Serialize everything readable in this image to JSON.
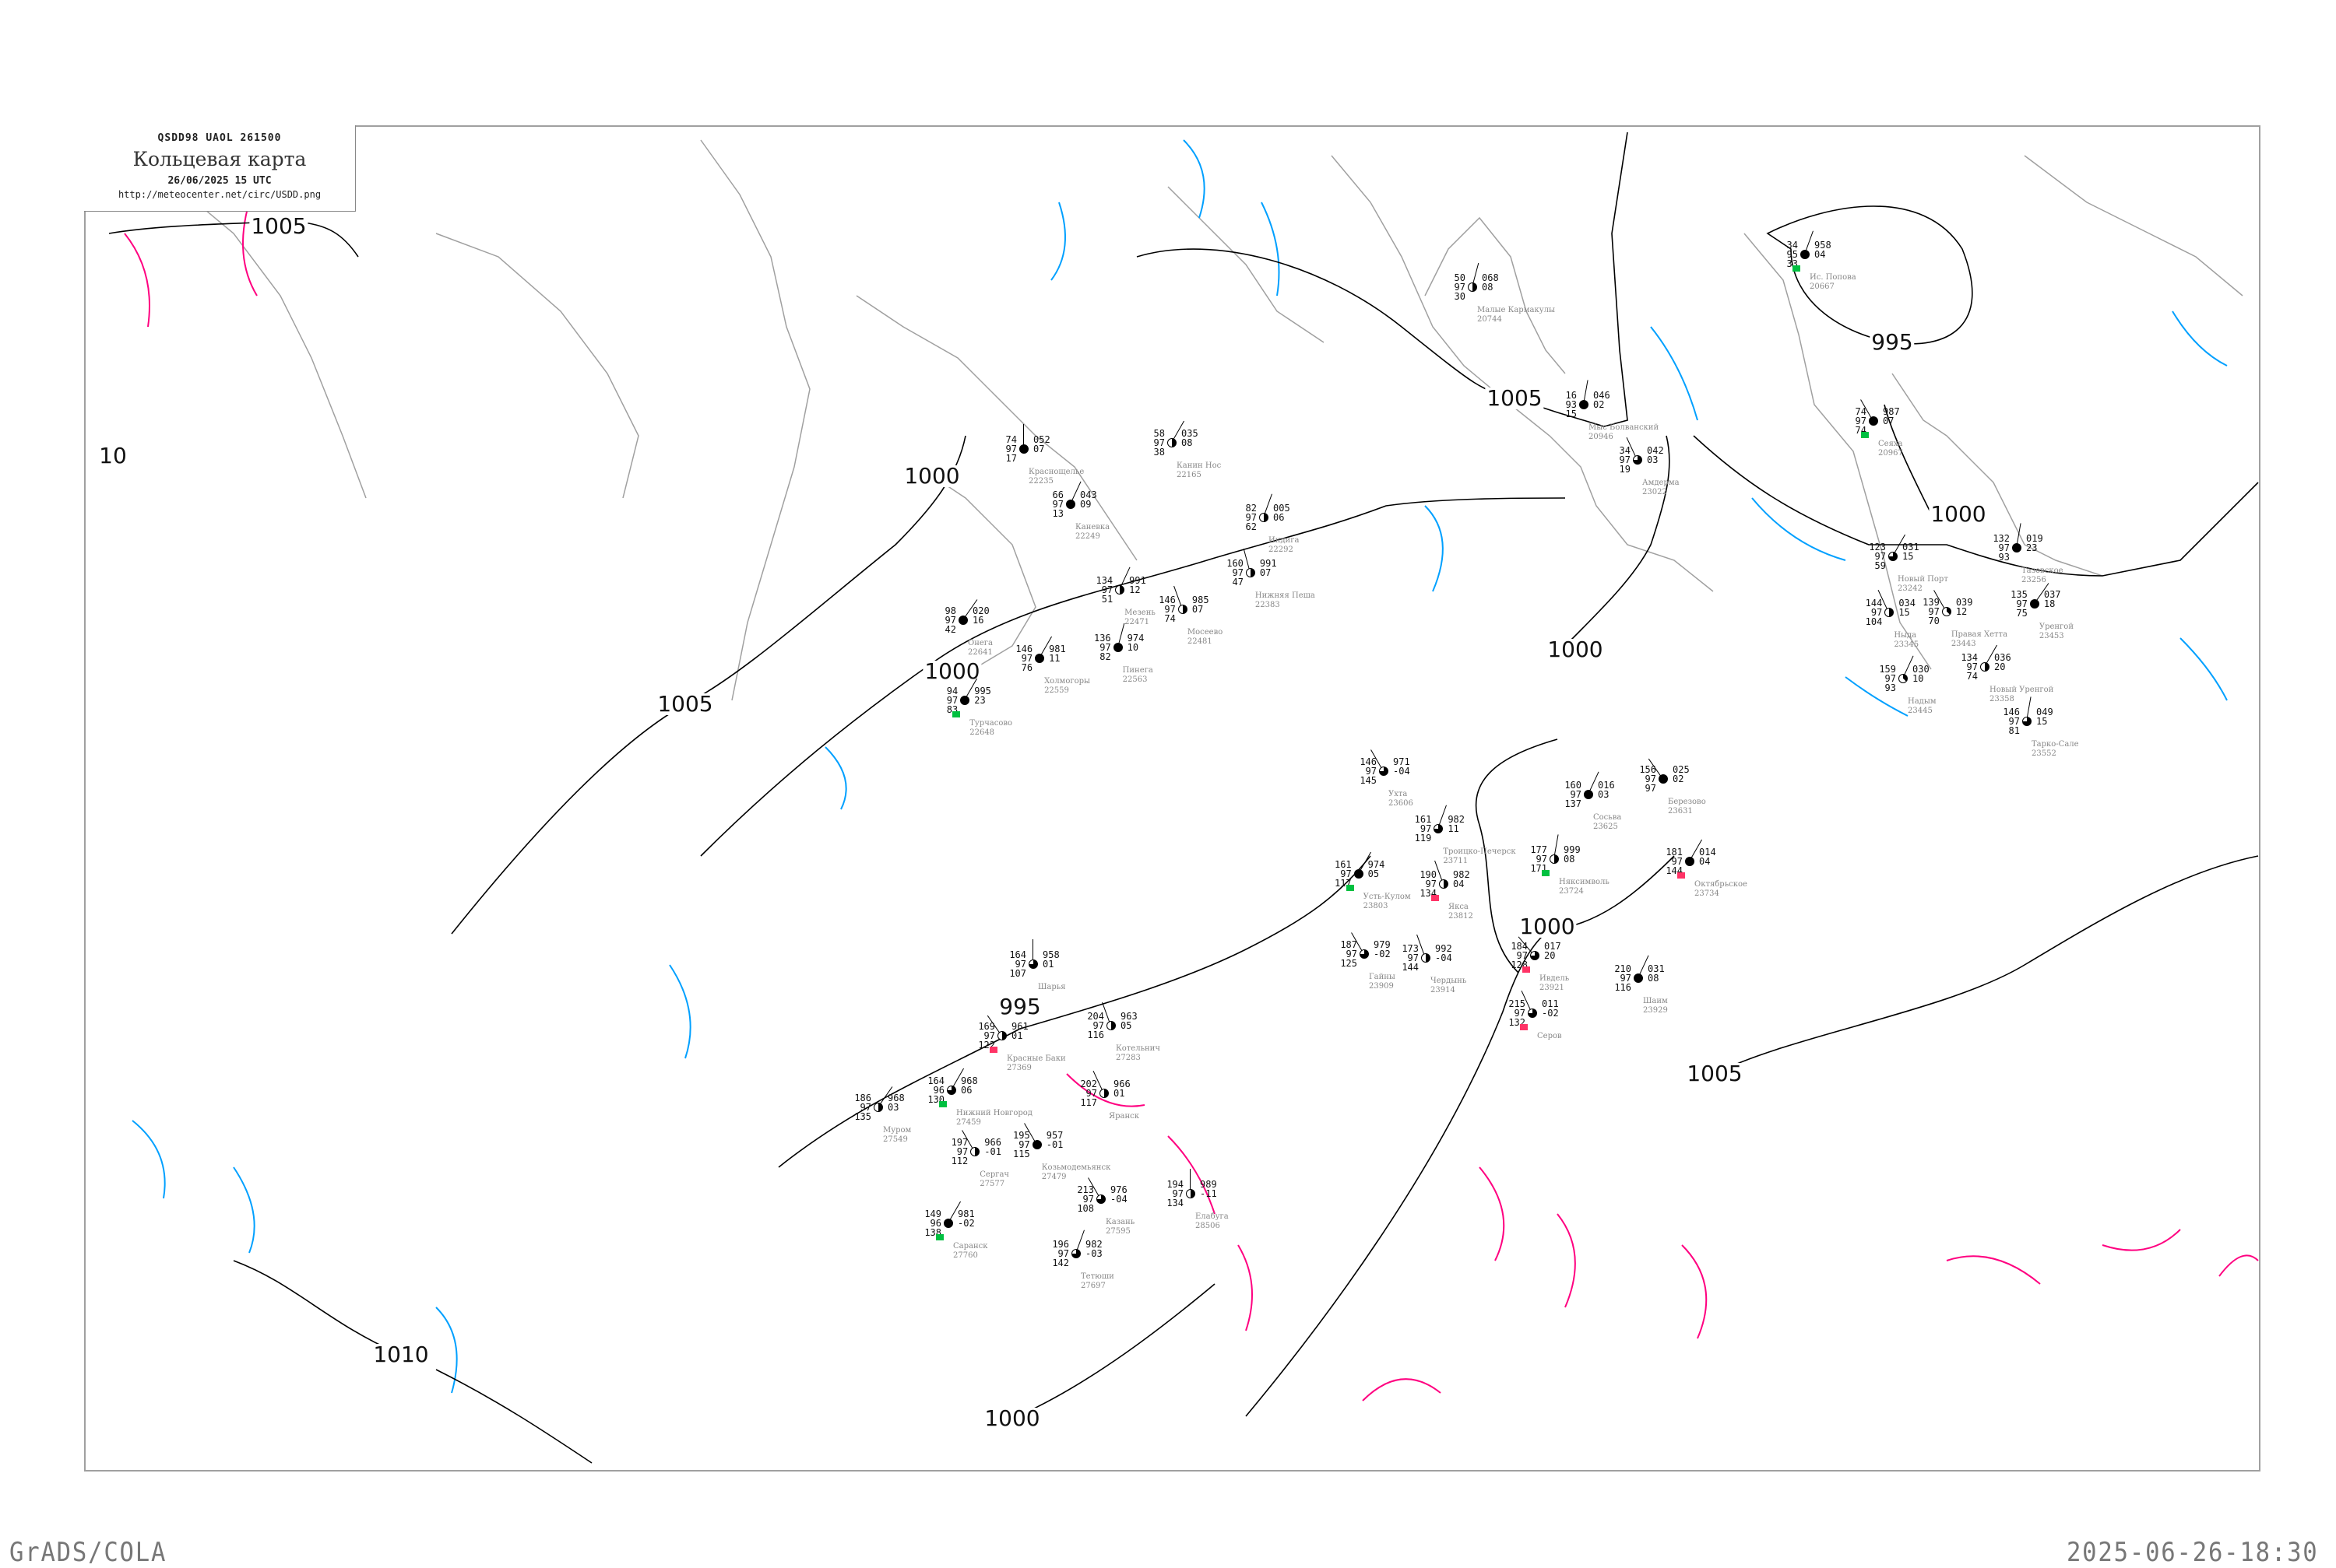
{
  "header": {
    "code": "QSDD98  UAOL  261500",
    "title": "Кольцевая карта",
    "date": "26/06/2025 15 UTC",
    "url": "http://meteocenter.net/circ/USDD.png"
  },
  "footer": {
    "left": "GrADS/COLA",
    "right": "2025-06-26-18:30"
  },
  "colors": {
    "isobar": "#000000",
    "isotherm_cold": "#00a0ff",
    "isotherm_warm": "#ff0080",
    "coastline": "#a0a0a0",
    "frame": "#a0a0a0",
    "precip_green": "#00c040",
    "precip_red": "#ff3366"
  },
  "isobar_labels": [
    "1005",
    "10",
    "1005",
    "1000",
    "1000",
    "1005",
    "995",
    "1000",
    "1000",
    "1000",
    "995",
    "1005",
    "1010",
    "1000"
  ],
  "stations": [
    {
      "name": "Ис. Попова",
      "id": "20667",
      "t": "34",
      "p": "958",
      "dew": "33",
      "vis": "95",
      "tend": "04",
      "cover": 8,
      "precip": "green"
    },
    {
      "name": "Сеяха",
      "id": "20967",
      "t": "74",
      "p": "987",
      "dew": "74",
      "vis": "97",
      "tend": "07",
      "cover": 8,
      "precip": "green"
    },
    {
      "name": "Малые Кармакулы",
      "id": "20744",
      "t": "50",
      "p": "068",
      "dew": "30",
      "vis": "97",
      "tend": "08",
      "cover": 4,
      "precip": ""
    },
    {
      "name": "Мыс Болванский",
      "id": "20946",
      "t": "16",
      "p": "046",
      "dew": "15",
      "vis": "93",
      "tend": "02",
      "cover": 8,
      "precip": ""
    },
    {
      "name": "Амдерма",
      "id": "23022",
      "t": "34",
      "p": "042",
      "dew": "19",
      "vis": "97",
      "tend": "03",
      "cover": 6,
      "precip": ""
    },
    {
      "name": "Канин Нос",
      "id": "22165",
      "t": "58",
      "p": "035",
      "dew": "38",
      "vis": "97",
      "tend": "08",
      "cover": 4,
      "precip": ""
    },
    {
      "name": "Индига",
      "id": "22292",
      "t": "82",
      "p": "005",
      "dew": "62",
      "vis": "97",
      "tend": "06",
      "cover": 4,
      "precip": ""
    },
    {
      "name": "Нижняя Пеша",
      "id": "22383",
      "t": "160",
      "p": "991",
      "dew": "47",
      "vis": "97",
      "tend": "07",
      "cover": 4,
      "precip": ""
    },
    {
      "name": "Мезень",
      "id": "22471",
      "t": "134",
      "p": "991",
      "dew": "51",
      "vis": "97",
      "tend": "12",
      "cover": 4,
      "precip": ""
    },
    {
      "name": "Мосеево",
      "id": "22481",
      "t": "146",
      "p": "985",
      "dew": "74",
      "vis": "97",
      "tend": "07",
      "cover": 4,
      "precip": ""
    },
    {
      "name": "Онега",
      "id": "22641",
      "t": "98",
      "p": "020",
      "dew": "42",
      "vis": "97",
      "tend": "16",
      "cover": 8,
      "precip": ""
    },
    {
      "name": "Холмогоры",
      "id": "22559",
      "t": "146",
      "p": "981",
      "dew": "76",
      "vis": "97",
      "tend": "11",
      "cover": 8,
      "precip": ""
    },
    {
      "name": "Пинега",
      "id": "22563",
      "t": "136",
      "p": "974",
      "dew": "82",
      "vis": "97",
      "tend": "10",
      "cover": 8,
      "precip": ""
    },
    {
      "name": "Каневка",
      "id": "22249",
      "t": "66",
      "p": "043",
      "dew": "13",
      "vis": "97",
      "tend": "09",
      "cover": 8,
      "precip": ""
    },
    {
      "name": "Краснощелье",
      "id": "22235",
      "t": "74",
      "p": "052",
      "dew": "17",
      "vis": "97",
      "tend": "07",
      "cover": 8,
      "precip": ""
    },
    {
      "name": "Турчасово",
      "id": "22648",
      "t": "94",
      "p": "995",
      "dew": "83",
      "vis": "97",
      "tend": "23",
      "cover": 8,
      "precip": "green"
    },
    {
      "name": "Ухта",
      "id": "23606",
      "t": "146",
      "p": "971",
      "dew": "145",
      "vis": "97",
      "tend": "-04",
      "cover": 6,
      "precip": ""
    },
    {
      "name": "Троицко-Печерск",
      "id": "23711",
      "t": "161",
      "p": "982",
      "dew": "119",
      "vis": "97",
      "tend": "11",
      "cover": 6,
      "precip": ""
    },
    {
      "name": "Усть-Кулом",
      "id": "23803",
      "t": "161",
      "p": "974",
      "dew": "117",
      "vis": "97",
      "tend": "05",
      "cover": 8,
      "precip": "green"
    },
    {
      "name": "Якса",
      "id": "23812",
      "t": "190",
      "p": "982",
      "dew": "134",
      "vis": "97",
      "tend": "04",
      "cover": 4,
      "precip": "red"
    },
    {
      "name": "Няксимволь",
      "id": "23724",
      "t": "177",
      "p": "999",
      "dew": "171",
      "vis": "97",
      "tend": "08",
      "cover": 4,
      "precip": "green"
    },
    {
      "name": "Сосьва",
      "id": "23625",
      "t": "160",
      "p": "016",
      "dew": "137",
      "vis": "97",
      "tend": "03",
      "cover": 8,
      "precip": ""
    },
    {
      "name": "Березово",
      "id": "23631",
      "t": "156",
      "p": "025",
      "dew": "97",
      "vis": "97",
      "tend": "02",
      "cover": 8,
      "precip": ""
    },
    {
      "name": "Октябрьское",
      "id": "23734",
      "t": "181",
      "p": "014",
      "dew": "144",
      "vis": "97",
      "tend": "04",
      "cover": 8,
      "precip": "red"
    },
    {
      "name": "Ивдель",
      "id": "23921",
      "t": "184",
      "p": "017",
      "dew": "128",
      "vis": "97",
      "tend": "20",
      "cover": 6,
      "precip": "red"
    },
    {
      "name": "Гайны",
      "id": "23909",
      "t": "187",
      "p": "979",
      "dew": "125",
      "vis": "97",
      "tend": "-02",
      "cover": 6,
      "precip": ""
    },
    {
      "name": "Чердынь",
      "id": "23914",
      "t": "173",
      "p": "992",
      "dew": "144",
      "vis": "97",
      "tend": "-04",
      "cover": 4,
      "precip": ""
    },
    {
      "name": "Шаим",
      "id": "23929",
      "t": "210",
      "p": "031",
      "dew": "116",
      "vis": "97",
      "tend": "08",
      "cover": 8,
      "precip": ""
    },
    {
      "name": "Серов",
      "id": "",
      "t": "215",
      "p": "011",
      "dew": "132",
      "vis": "97",
      "tend": "-02",
      "cover": 6,
      "precip": "red"
    },
    {
      "name": "Нижний Новгород",
      "id": "27459",
      "t": "164",
      "p": "968",
      "dew": "130",
      "vis": "96",
      "tend": "06",
      "cover": 6,
      "precip": "green"
    },
    {
      "name": "Муром",
      "id": "27549",
      "t": "186",
      "p": "968",
      "dew": "135",
      "vis": "97",
      "tend": "03",
      "cover": 4,
      "precip": ""
    },
    {
      "name": "Козьмодемьянск",
      "id": "27479",
      "t": "195",
      "p": "957",
      "dew": "115",
      "vis": "97",
      "tend": "-01",
      "cover": 8,
      "precip": ""
    },
    {
      "name": "Красные Баки",
      "id": "27369",
      "t": "169",
      "p": "961",
      "dew": "122",
      "vis": "97",
      "tend": "01",
      "cover": 4,
      "precip": "red"
    },
    {
      "name": "Шарья",
      "id": "",
      "t": "164",
      "p": "958",
      "dew": "107",
      "vis": "97",
      "tend": "01",
      "cover": 6,
      "precip": ""
    },
    {
      "name": "Котельнич",
      "id": "27283",
      "t": "204",
      "p": "963",
      "dew": "116",
      "vis": "97",
      "tend": "05",
      "cover": 4,
      "precip": ""
    },
    {
      "name": "Яранск",
      "id": "",
      "t": "202",
      "p": "966",
      "dew": "117",
      "vis": "97",
      "tend": "01",
      "cover": 4,
      "precip": ""
    },
    {
      "name": "Сергач",
      "id": "27577",
      "t": "197",
      "p": "966",
      "dew": "112",
      "vis": "97",
      "tend": "-01",
      "cover": 4,
      "precip": ""
    },
    {
      "name": "Саранск",
      "id": "27760",
      "t": "149",
      "p": "981",
      "dew": "138",
      "vis": "96",
      "tend": "-02",
      "cover": 8,
      "precip": "green"
    },
    {
      "name": "Казань",
      "id": "27595",
      "t": "213",
      "p": "976",
      "dew": "108",
      "vis": "97",
      "tend": "-04",
      "cover": 6,
      "precip": ""
    },
    {
      "name": "Тетюши",
      "id": "27697",
      "t": "196",
      "p": "982",
      "dew": "142",
      "vis": "97",
      "tend": "-03",
      "cover": 6,
      "precip": ""
    },
    {
      "name": "Елабуга",
      "id": "28506",
      "t": "194",
      "p": "989",
      "dew": "134",
      "vis": "97",
      "tend": "-11",
      "cover": 4,
      "precip": ""
    },
    {
      "name": "Тазовское",
      "id": "23256",
      "t": "132",
      "p": "019",
      "dew": "93",
      "vis": "97",
      "tend": "23",
      "cover": 8,
      "precip": ""
    },
    {
      "name": "Новый Порт",
      "id": "23242",
      "t": "123",
      "p": "031",
      "dew": "59",
      "vis": "97",
      "tend": "15",
      "cover": 6,
      "precip": ""
    },
    {
      "name": "Ныда",
      "id": "23345",
      "t": "144",
      "p": "034",
      "dew": "104",
      "vis": "97",
      "tend": "15",
      "cover": 4,
      "precip": ""
    },
    {
      "name": "Новый Уренгой",
      "id": "23358",
      "t": "134",
      "p": "036",
      "dew": "74",
      "vis": "97",
      "tend": "20",
      "cover": 4,
      "precip": ""
    },
    {
      "name": "Уренгой",
      "id": "23453",
      "t": "135",
      "p": "037",
      "dew": "75",
      "vis": "97",
      "tend": "18",
      "cover": 8,
      "precip": ""
    },
    {
      "name": "Правая Хетта",
      "id": "23443",
      "t": "139",
      "p": "039",
      "dew": "70",
      "vis": "97",
      "tend": "12",
      "cover": 3,
      "precip": ""
    },
    {
      "name": "Надым",
      "id": "23445",
      "t": "159",
      "p": "030",
      "dew": "93",
      "vis": "97",
      "tend": "10",
      "cover": 3,
      "precip": ""
    },
    {
      "name": "Тарко-Сале",
      "id": "23552",
      "t": "146",
      "p": "049",
      "dew": "81",
      "vis": "97",
      "tend": "15",
      "cover": 6,
      "precip": ""
    }
  ]
}
